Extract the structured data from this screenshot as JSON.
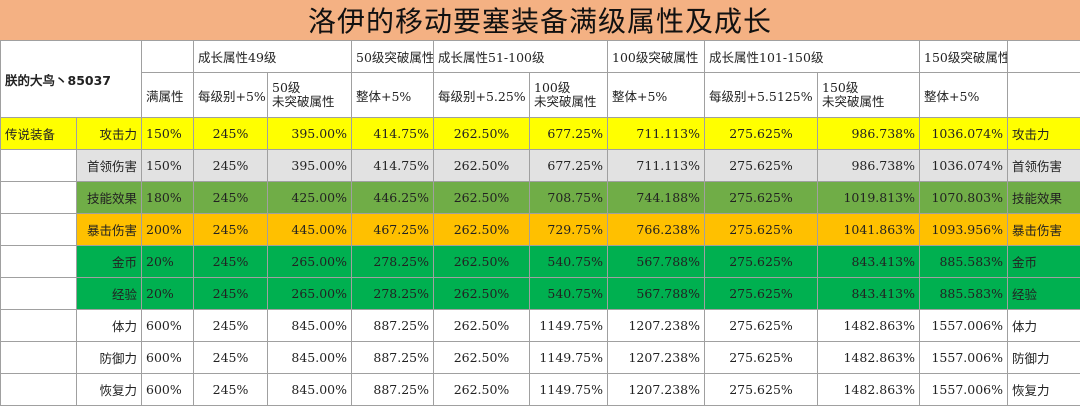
{
  "title": "洛伊的移动要塞装备满级属性及成长",
  "watermark": "朕的大鸟丶85037",
  "header": {
    "group1": "成长属性49级",
    "group2": "50级突破属性",
    "group3": "成长属性51-100级",
    "group4": "100级突破属性",
    "group5": "成长属性101-150级",
    "group6": "150级突破属性",
    "max_attr": "满属性",
    "per_level_5": "每级别+5%",
    "lv50_unbreak_l1": "50级",
    "lv50_unbreak_l2": "未突破属性",
    "overall_5a": "整体+5%",
    "per_level_525": "每级别+5.25%",
    "lv100_unbreak_l1": "100级",
    "lv100_unbreak_l2": "未突破属性",
    "overall_5b": "整体+5%",
    "per_level_55125": "每级别+5.5125%",
    "lv150_unbreak_l1": "150级",
    "lv150_unbreak_l2": "未突破属性",
    "overall_5c": "整体+5%"
  },
  "rows": [
    {
      "group": "传说装备",
      "attr": "攻击力",
      "max": "150%",
      "g49": "245%",
      "u50": "395.00%",
      "b50": "414.75%",
      "g100": "262.50%",
      "u100": "677.25%",
      "b100": "711.113%",
      "g150": "275.625%",
      "u150": "986.738%",
      "b150": "1036.074%",
      "attr2": "攻击力",
      "bg": "#ffff00"
    },
    {
      "group": "",
      "attr": "首领伤害",
      "max": "150%",
      "g49": "245%",
      "u50": "395.00%",
      "b50": "414.75%",
      "g100": "262.50%",
      "u100": "677.25%",
      "b100": "711.113%",
      "g150": "275.625%",
      "u150": "986.738%",
      "b150": "1036.074%",
      "attr2": "首领伤害",
      "bg": "#e2e2e2"
    },
    {
      "group": "",
      "attr": "技能效果",
      "max": "180%",
      "g49": "245%",
      "u50": "425.00%",
      "b50": "446.25%",
      "g100": "262.50%",
      "u100": "708.75%",
      "b100": "744.188%",
      "g150": "275.625%",
      "u150": "1019.813%",
      "b150": "1070.803%",
      "attr2": "技能效果",
      "bg": "#70ad47"
    },
    {
      "group": "",
      "attr": "暴击伤害",
      "max": "200%",
      "g49": "245%",
      "u50": "445.00%",
      "b50": "467.25%",
      "g100": "262.50%",
      "u100": "729.75%",
      "b100": "766.238%",
      "g150": "275.625%",
      "u150": "1041.863%",
      "b150": "1093.956%",
      "attr2": "暴击伤害",
      "bg": "#ffc000"
    },
    {
      "group": "",
      "attr": "金币",
      "max": "20%",
      "g49": "245%",
      "u50": "265.00%",
      "b50": "278.25%",
      "g100": "262.50%",
      "u100": "540.75%",
      "b100": "567.788%",
      "g150": "275.625%",
      "u150": "843.413%",
      "b150": "885.583%",
      "attr2": "金币",
      "bg": "#00b050"
    },
    {
      "group": "",
      "attr": "经验",
      "max": "20%",
      "g49": "245%",
      "u50": "265.00%",
      "b50": "278.25%",
      "g100": "262.50%",
      "u100": "540.75%",
      "b100": "567.788%",
      "g150": "275.625%",
      "u150": "843.413%",
      "b150": "885.583%",
      "attr2": "经验",
      "bg": "#00b050"
    },
    {
      "group": "",
      "attr": "体力",
      "max": "600%",
      "g49": "245%",
      "u50": "845.00%",
      "b50": "887.25%",
      "g100": "262.50%",
      "u100": "1149.75%",
      "b100": "1207.238%",
      "g150": "275.625%",
      "u150": "1482.863%",
      "b150": "1557.006%",
      "attr2": "体力",
      "bg": "#ffffff"
    },
    {
      "group": "",
      "attr": "防御力",
      "max": "600%",
      "g49": "245%",
      "u50": "845.00%",
      "b50": "887.25%",
      "g100": "262.50%",
      "u100": "1149.75%",
      "b100": "1207.238%",
      "g150": "275.625%",
      "u150": "1482.863%",
      "b150": "1557.006%",
      "attr2": "防御力",
      "bg": "#ffffff"
    },
    {
      "group": "",
      "attr": "恢复力",
      "max": "600%",
      "g49": "245%",
      "u50": "845.00%",
      "b50": "887.25%",
      "g100": "262.50%",
      "u100": "1149.75%",
      "b100": "1207.238%",
      "g150": "275.625%",
      "u150": "1482.863%",
      "b150": "1557.006%",
      "attr2": "恢复力",
      "bg": "#ffffff"
    }
  ]
}
